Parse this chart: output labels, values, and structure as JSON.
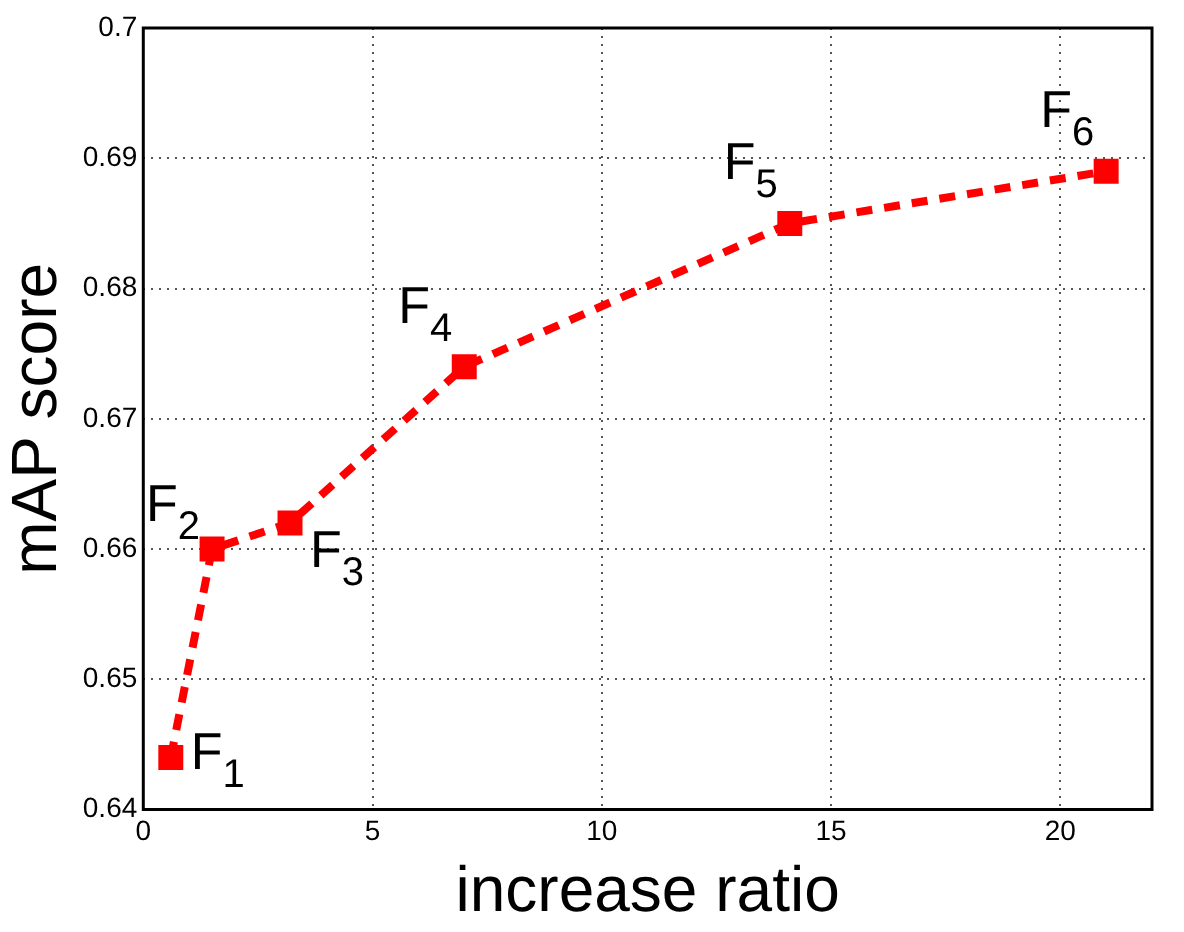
{
  "chart_data": {
    "type": "line",
    "xlabel": "increase ratio",
    "ylabel": "mAP score",
    "x": [
      0.6,
      1.5,
      3.2,
      7,
      14.1,
      21
    ],
    "series": [
      {
        "color": "#ff0000",
        "values": [
          0.644,
          0.66,
          0.662,
          0.674,
          0.685,
          0.689
        ]
      }
    ],
    "xlim": [
      0,
      22
    ],
    "xticks": [
      0,
      5,
      10,
      15,
      20
    ],
    "ylim": [
      0.64,
      0.7
    ],
    "yticks": [
      0.64,
      0.65,
      0.66,
      0.67,
      0.68,
      0.69,
      0.7
    ],
    "grid": true,
    "legend": false,
    "marker": "square",
    "line_style": "dashed",
    "annotations": [
      {
        "text": "F$_{1}$",
        "x": 0.6,
        "y": 0.644
      },
      {
        "text": "F$_{2}$",
        "x": 1.5,
        "y": 0.66
      },
      {
        "text": "F$_{3}$",
        "x": 3.2,
        "y": 0.662
      },
      {
        "text": "F$_{4}$",
        "x": 7,
        "y": 0.674
      },
      {
        "text": "F$_{5}$",
        "x": 14.1,
        "y": 0.685
      },
      {
        "text": "F$_{6}$",
        "x": 21,
        "y": 0.689
      }
    ]
  }
}
